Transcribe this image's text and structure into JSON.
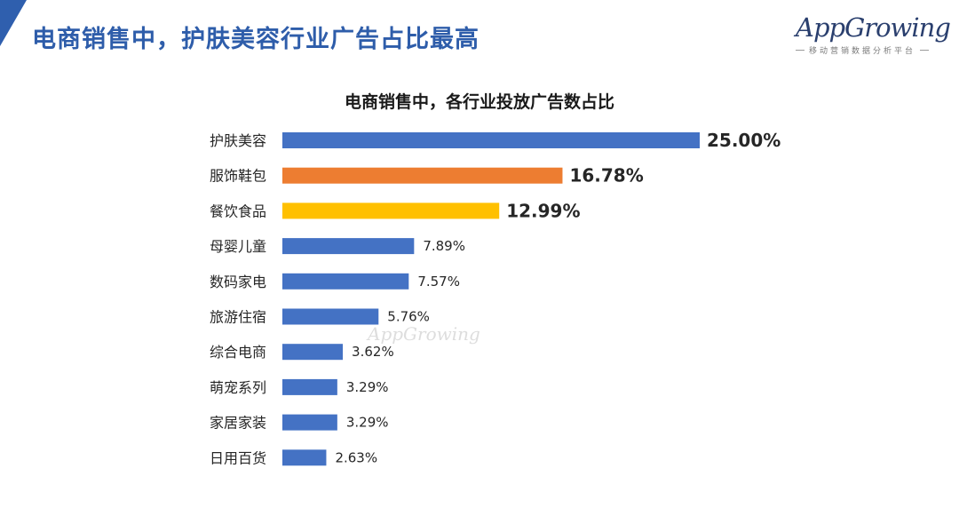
{
  "header": {
    "slide_title": "电商销售中，护肤美容行业广告占比最高"
  },
  "logo": {
    "text": "AppGrowing",
    "subtitle": "移动营销数据分析平台"
  },
  "watermark": {
    "text": "AppGrowing"
  },
  "colors": {
    "title_blue": "#2e5daa",
    "bar_blue": "#4472c4",
    "bar_orange": "#ed7d31",
    "bar_yellow": "#ffc000"
  },
  "chart_data": {
    "type": "bar",
    "orientation": "horizontal",
    "title": "电商销售中，各行业投放广告数占比",
    "categories": [
      "护肤美容",
      "服饰鞋包",
      "餐饮食品",
      "母婴儿童",
      "数码家电",
      "旅游住宿",
      "综合电商",
      "萌宠系列",
      "家居家装",
      "日用百货"
    ],
    "values": [
      25.0,
      16.78,
      12.99,
      7.89,
      7.57,
      5.76,
      3.62,
      3.29,
      3.29,
      2.63
    ],
    "value_labels": [
      "25.00%",
      "16.78%",
      "12.99%",
      "7.89%",
      "7.57%",
      "5.76%",
      "3.62%",
      "3.29%",
      "3.29%",
      "2.63%"
    ],
    "bar_colors": [
      "#4472c4",
      "#ed7d31",
      "#ffc000",
      "#4472c4",
      "#4472c4",
      "#4472c4",
      "#4472c4",
      "#4472c4",
      "#4472c4",
      "#4472c4"
    ],
    "highlight_label_colors": [
      "#4472c4",
      "#ed7d31",
      "#ffc000",
      "#262626",
      "#262626",
      "#262626",
      "#262626",
      "#262626",
      "#262626",
      "#262626"
    ],
    "xlabel": "",
    "ylabel": "",
    "unit": "%",
    "grid": false,
    "legend": "none"
  }
}
